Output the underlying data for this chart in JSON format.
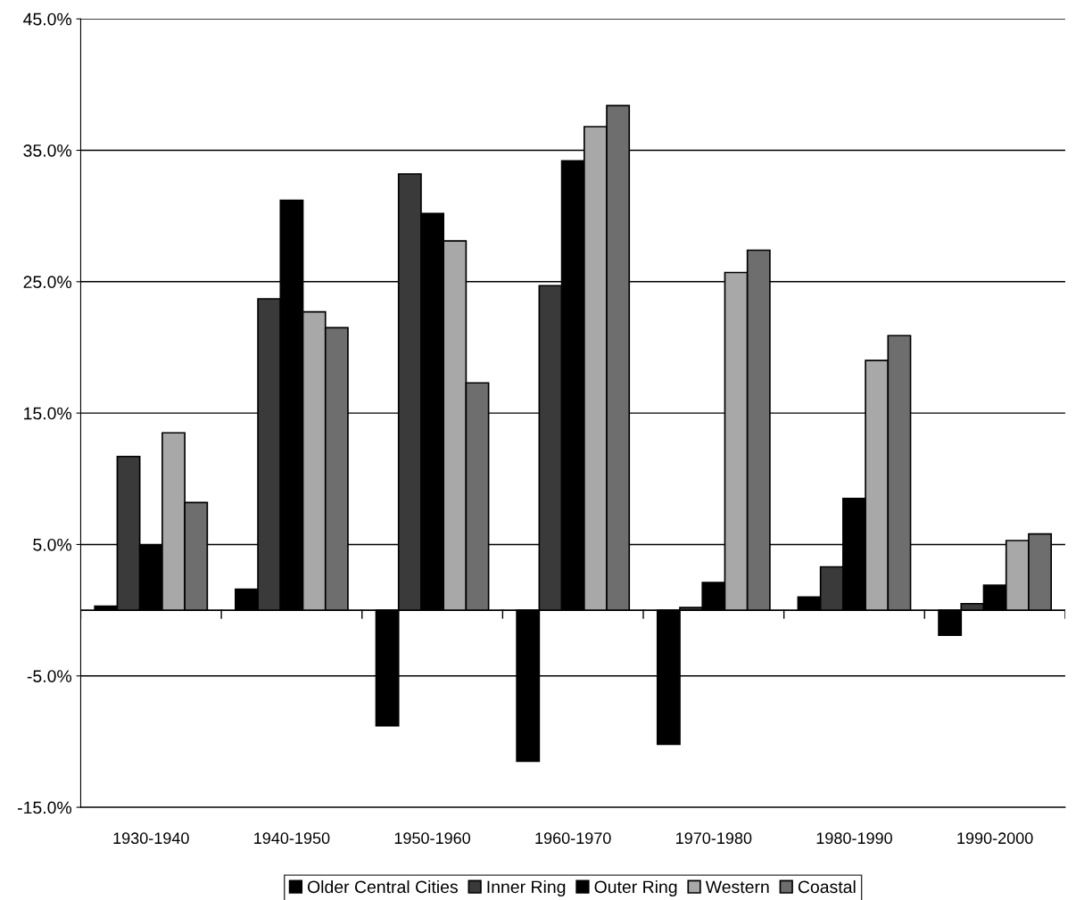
{
  "chart_data": {
    "type": "bar",
    "categories": [
      "1930-1940",
      "1940-1950",
      "1950-1960",
      "1960-1970",
      "1970-1980",
      "1980-1990",
      "1990-2000"
    ],
    "series": [
      {
        "name": "Older Central Cities",
        "color": "#000000",
        "values": [
          0.3,
          1.6,
          -8.8,
          -11.5,
          -10.2,
          1.0,
          -1.9
        ]
      },
      {
        "name": "Inner Ring",
        "color": "#3a3a3a",
        "values": [
          11.7,
          23.7,
          33.2,
          24.7,
          0.2,
          3.3,
          0.5
        ]
      },
      {
        "name": "Outer Ring",
        "color": "#000000",
        "values": [
          4.9,
          31.2,
          30.2,
          34.2,
          2.1,
          8.5,
          1.9
        ]
      },
      {
        "name": "Western",
        "color": "#a8a8a8",
        "values": [
          13.5,
          22.7,
          28.1,
          36.8,
          25.7,
          19.0,
          5.3
        ]
      },
      {
        "name": "Coastal",
        "color": "#6e6e6e",
        "values": [
          8.2,
          21.5,
          17.3,
          38.4,
          27.4,
          20.9,
          5.8
        ]
      }
    ],
    "ylim": [
      -15,
      45
    ],
    "yticks": [
      {
        "value": -15,
        "label": "-15.0%"
      },
      {
        "value": -5,
        "label": "-5.0%"
      },
      {
        "value": 5,
        "label": "5.0%"
      },
      {
        "value": 15,
        "label": "15.0%"
      },
      {
        "value": 25,
        "label": "25.0%"
      },
      {
        "value": 35,
        "label": "35.0%"
      },
      {
        "value": 45,
        "label": "45.0%"
      }
    ],
    "grid": "y",
    "legend": "bottom"
  }
}
